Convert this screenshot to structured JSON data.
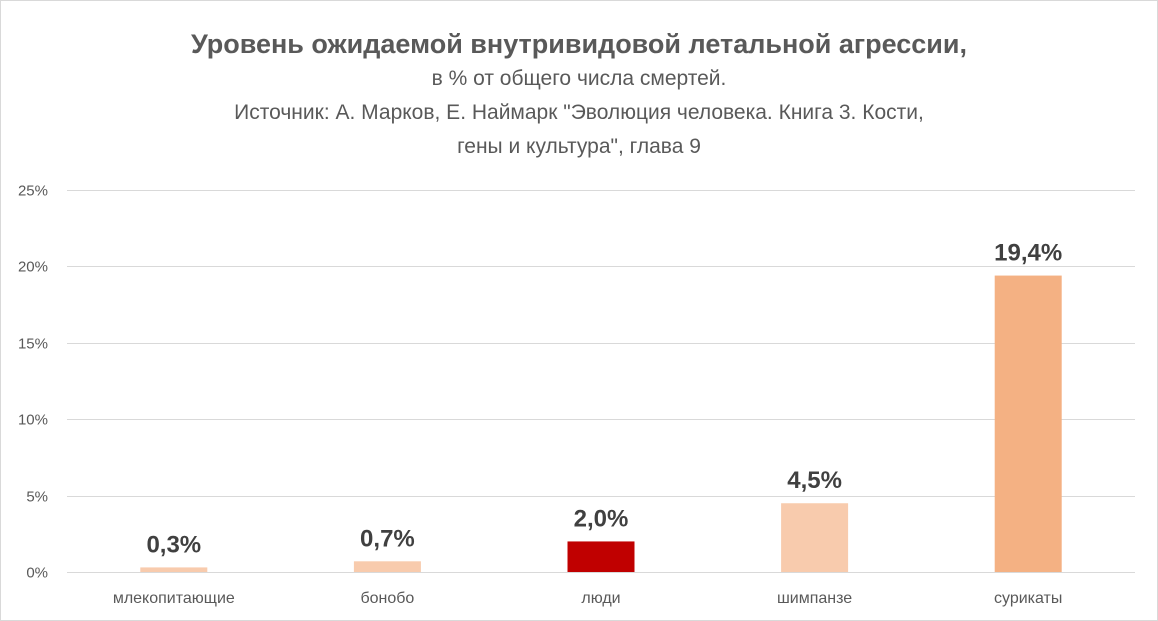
{
  "chart_data": {
    "type": "bar",
    "title": "Уровень ожидаемой внутривидовой летальной агрессии,",
    "subtitle_lines": [
      "в % от общего числа смертей.",
      "Источник: А. Марков, Е. Наймарк \"Эволюция человека. Книга 3. Кости,",
      "гены и культура\", глава 9"
    ],
    "categories": [
      "млекопитающие",
      "бонобо",
      "люди",
      "шимпанзе",
      "сурикаты"
    ],
    "values": [
      0.3,
      0.7,
      2.0,
      4.5,
      19.4
    ],
    "data_labels": [
      "0,3%",
      "0,7%",
      "2,0%",
      "4,5%",
      "19,4%"
    ],
    "bar_colors": [
      "#F8CBAD",
      "#F8CBAD",
      "#C00000",
      "#F8CBAD",
      "#F4B183"
    ],
    "yticks": [
      0,
      5,
      10,
      15,
      20,
      25
    ],
    "ytick_labels": [
      "0%",
      "5%",
      "10%",
      "15%",
      "20%",
      "25%"
    ],
    "ylim": [
      0,
      25
    ],
    "xlabel": "",
    "ylabel": "",
    "grid": true,
    "gridline_color": "#d9d9d9",
    "text_color": "#595959",
    "data_label_color": "#404040"
  }
}
